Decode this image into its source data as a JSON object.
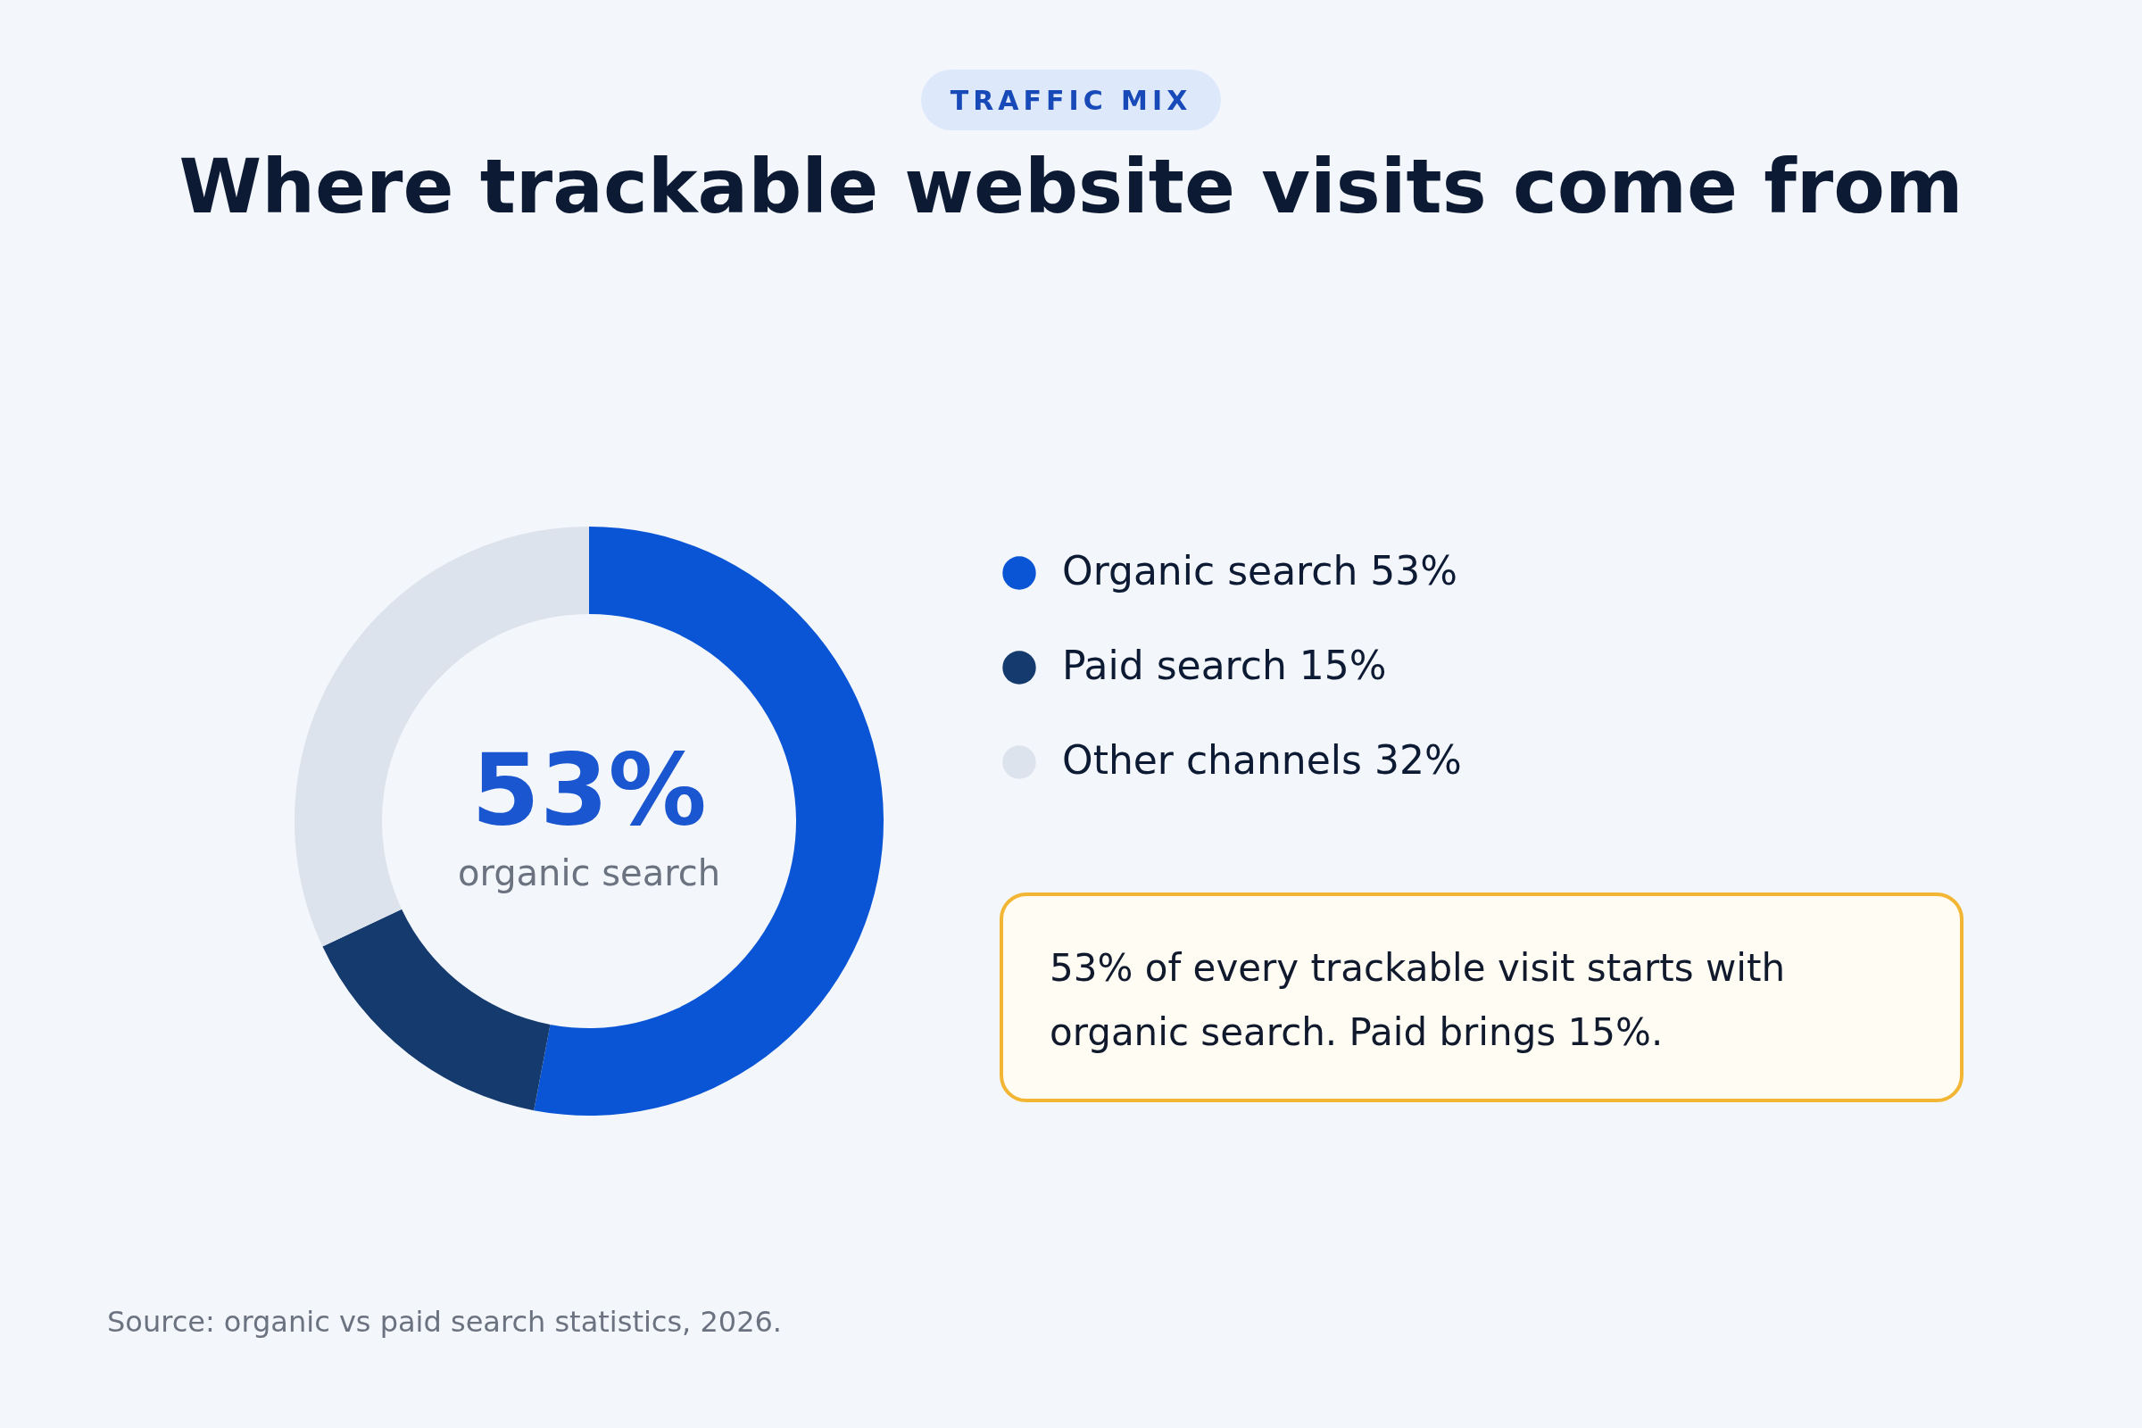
{
  "chart_data": {
    "type": "donut",
    "subtitle": "TRAFFIC MIX",
    "title": "Where trackable website visits come from",
    "categories": [
      "Organic search",
      "Paid search",
      "Other channels"
    ],
    "values": [
      53,
      15,
      32
    ],
    "colors": [
      "#0a55d6",
      "#143a6e",
      "#dde3ec"
    ],
    "value_labels": [
      "53%",
      "15%",
      "32%"
    ],
    "legend": "right",
    "annotations": [
      "53%",
      "organic search",
      "53% of every trackable visit starts with organic search. Paid brings 15%.",
      "Source: organic vs paid search statistics, 2026."
    ]
  }
}
